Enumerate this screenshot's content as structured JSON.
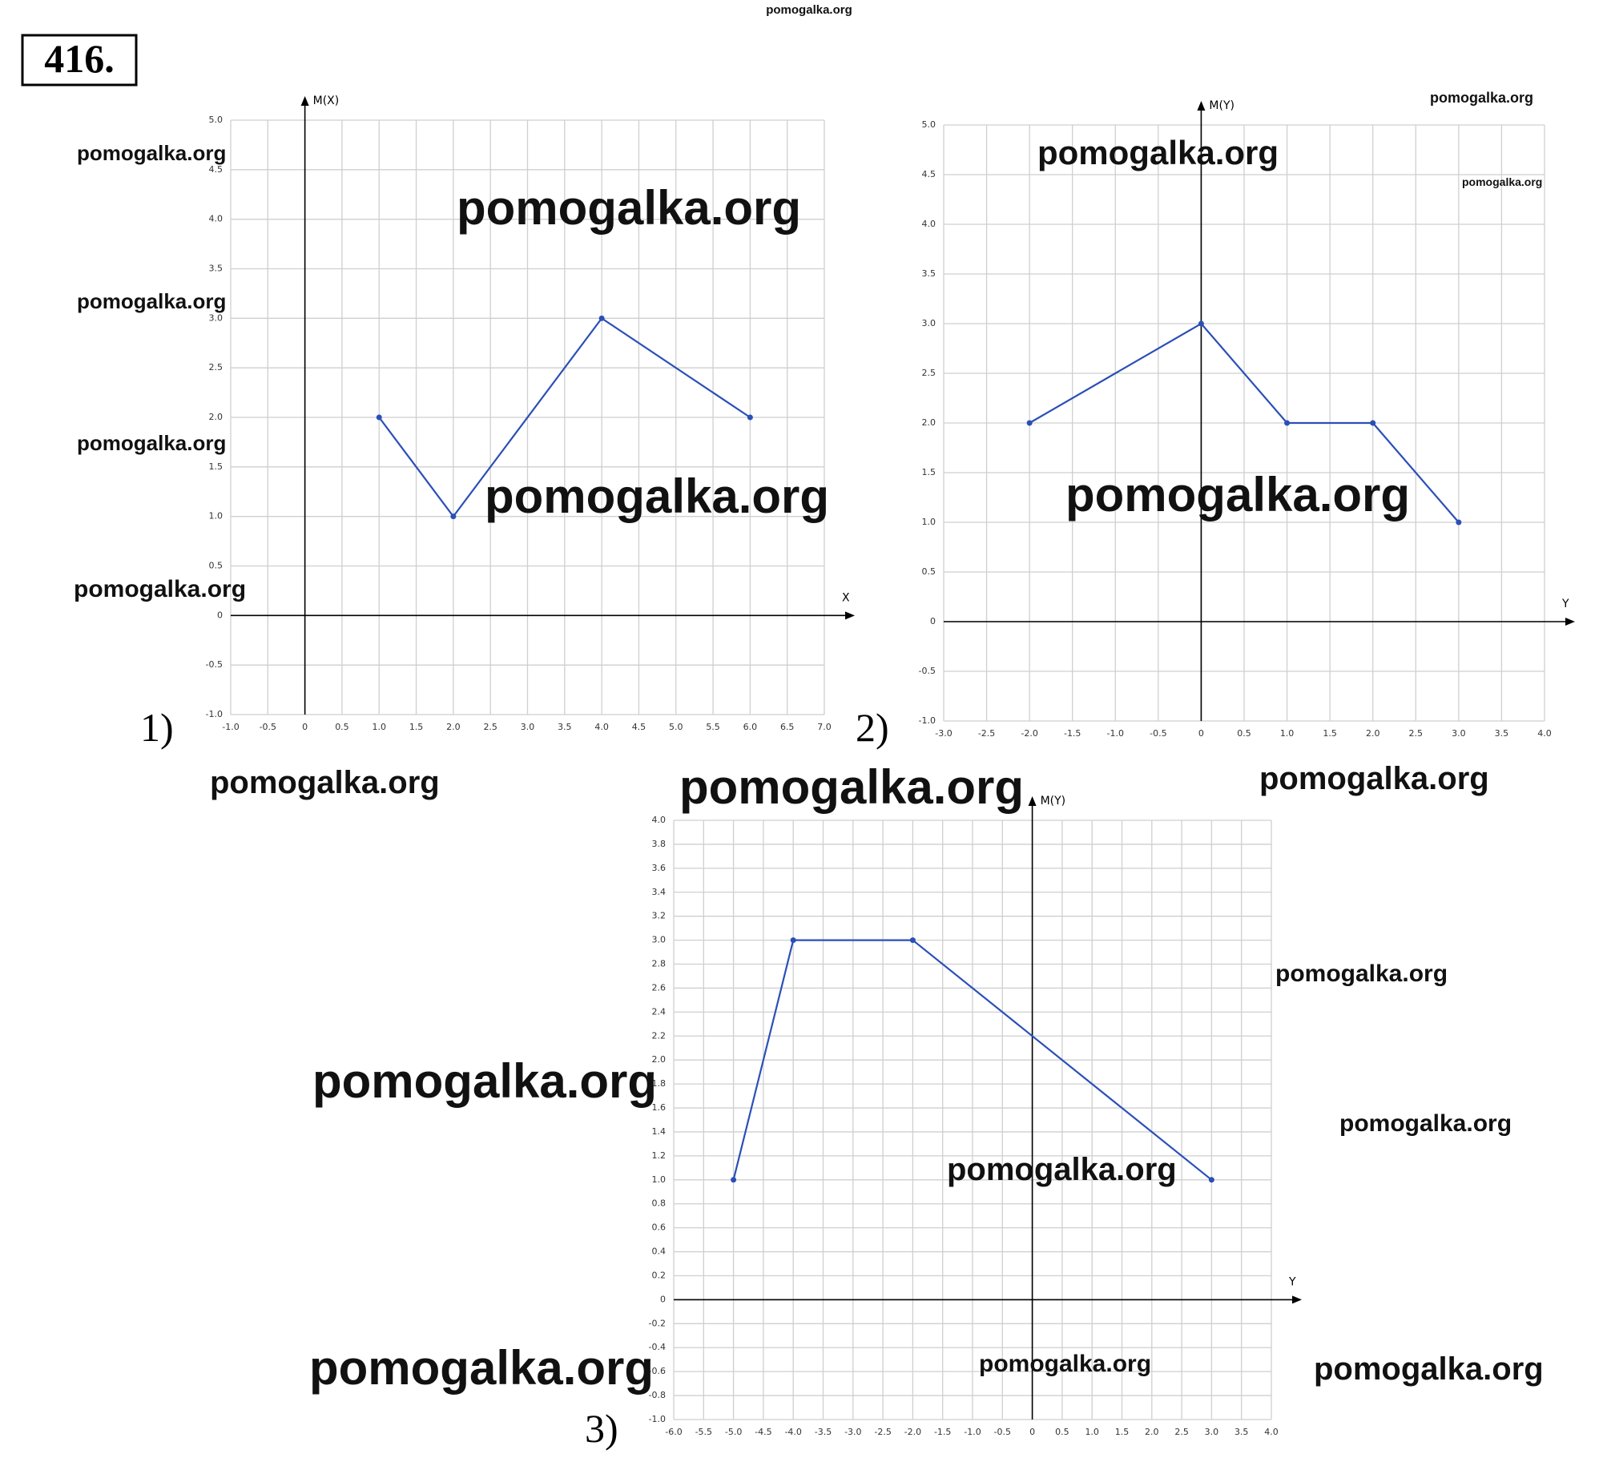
{
  "problem_number": "416.",
  "watermark": "pomogalka.org",
  "chart_data": [
    {
      "type": "line",
      "label": "1)",
      "y_label": "M(X)",
      "x_label": "X",
      "x": [
        1,
        2,
        4,
        6
      ],
      "series": [
        {
          "color": "#2b4fb8",
          "values": [
            2,
            1,
            3,
            2
          ]
        }
      ],
      "xlim": [
        -1,
        7
      ],
      "ylim": [
        -1,
        5
      ],
      "grid": true,
      "xticks": [
        {
          "value": -1,
          "label": "-1.0"
        },
        -0.5,
        0,
        0.5,
        {
          "value": 1,
          "label": "1.0"
        },
        1.5,
        {
          "value": 2,
          "label": "2.0"
        },
        2.5,
        {
          "value": 3,
          "label": "3.0"
        },
        3.5,
        {
          "value": 4,
          "label": "4.0"
        },
        4.5,
        {
          "value": 5,
          "label": "5.0"
        },
        5.5,
        {
          "value": 6,
          "label": "6.0"
        },
        6.5,
        {
          "value": 7,
          "label": "7.0"
        }
      ],
      "yticks": [
        {
          "value": -1,
          "label": "-1.0"
        },
        -0.5,
        0,
        0.5,
        {
          "value": 1,
          "label": "1.0"
        },
        1.5,
        {
          "value": 2,
          "label": "2.0"
        },
        2.5,
        {
          "value": 3,
          "label": "3.0"
        },
        3.5,
        {
          "value": 4,
          "label": "4.0"
        },
        4.5,
        {
          "value": 5,
          "label": "5.0"
        }
      ]
    },
    {
      "type": "line",
      "label": "2)",
      "y_label": "M(Y)",
      "x_label": "Y",
      "x": [
        -2,
        0,
        1,
        2,
        3
      ],
      "series": [
        {
          "color": "#2b4fb8",
          "values": [
            2,
            3,
            2,
            2,
            1
          ]
        }
      ],
      "xlim": [
        -3,
        4
      ],
      "ylim": [
        -1,
        5
      ],
      "grid": true,
      "xticks": [
        {
          "value": -3,
          "label": "-3.0"
        },
        -2.5,
        {
          "value": -2,
          "label": "-2.0"
        },
        -1.5,
        {
          "value": -1,
          "label": "-1.0"
        },
        -0.5,
        0,
        0.5,
        {
          "value": 1,
          "label": "1.0"
        },
        1.5,
        {
          "value": 2,
          "label": "2.0"
        },
        2.5,
        {
          "value": 3,
          "label": "3.0"
        },
        3.5,
        {
          "value": 4,
          "label": "4.0"
        }
      ],
      "yticks": [
        {
          "value": -1,
          "label": "-1.0"
        },
        -0.5,
        0,
        0.5,
        {
          "value": 1,
          "label": "1.0"
        },
        1.5,
        {
          "value": 2,
          "label": "2.0"
        },
        2.5,
        {
          "value": 3,
          "label": "3.0"
        },
        3.5,
        {
          "value": 4,
          "label": "4.0"
        },
        4.5,
        {
          "value": 5,
          "label": "5.0"
        }
      ]
    },
    {
      "type": "line",
      "label": "3)",
      "y_label": "M(Y)",
      "x_label": "Y",
      "x": [
        -5,
        -4,
        -2,
        3
      ],
      "series": [
        {
          "color": "#2b4fb8",
          "values": [
            1,
            3,
            3,
            1
          ]
        }
      ],
      "xlim": [
        -6,
        4
      ],
      "ylim": [
        -1,
        4
      ],
      "grid": true,
      "xticks": [
        {
          "value": -6,
          "label": "-6.0"
        },
        -5.5,
        {
          "value": -5,
          "label": "-5.0"
        },
        -4.5,
        {
          "value": -4,
          "label": "-4.0"
        },
        -3.5,
        {
          "value": -3,
          "label": "-3.0"
        },
        -2.5,
        {
          "value": -2,
          "label": "-2.0"
        },
        -1.5,
        {
          "value": -1,
          "label": "-1.0"
        },
        -0.5,
        0,
        0.5,
        {
          "value": 1,
          "label": "1.0"
        },
        1.5,
        {
          "value": 2,
          "label": "2.0"
        },
        2.5,
        {
          "value": 3,
          "label": "3.0"
        },
        3.5,
        {
          "value": 4,
          "label": "4.0"
        }
      ],
      "yticks": [
        {
          "value": -1,
          "label": "-1.0"
        },
        -0.8,
        -0.6,
        -0.4,
        -0.2,
        0,
        0.2,
        0.4,
        0.6,
        0.8,
        {
          "value": 1,
          "label": "1.0"
        },
        1.2,
        1.4,
        1.6,
        1.8,
        {
          "value": 2,
          "label": "2.0"
        },
        2.2,
        2.4,
        2.6,
        2.8,
        {
          "value": 3,
          "label": "3.0"
        },
        3.2,
        3.4,
        3.6,
        3.8,
        {
          "value": 4,
          "label": "4.0"
        }
      ]
    }
  ]
}
